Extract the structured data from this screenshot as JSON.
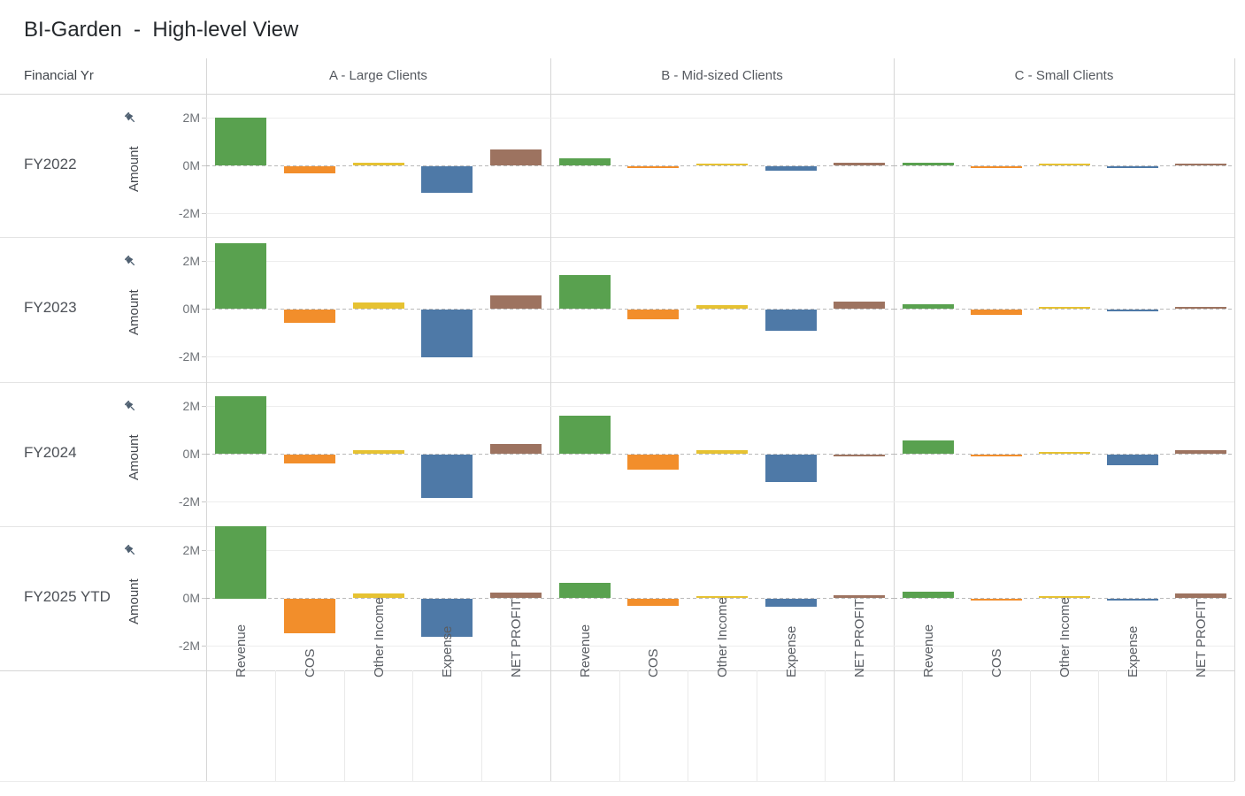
{
  "title": "BI-Garden  -  High-level View",
  "header": {
    "row_dimension_label": "Financial Yr",
    "columns": [
      "A - Large Clients",
      "B - Mid-sized Clients",
      "C - Small Clients"
    ]
  },
  "axis": {
    "title": "Amount",
    "ticks": [
      "2M",
      "0M",
      "-2M"
    ],
    "pin_icon": "pin-icon",
    "pin_color": "#4e5f70"
  },
  "measures": [
    "Revenue",
    "COS",
    "Other Income",
    "Expense",
    "NET PROFIT"
  ],
  "colors": {
    "Revenue": "#59A14F",
    "COS": "#F28E2B",
    "Other Income": "#E6C232",
    "Expense": "#4E79A7",
    "NET PROFIT": "#9D7360"
  },
  "chart_data": {
    "type": "bar",
    "title": "BI-Garden - High-level View",
    "unit": "millions",
    "ylabel": "Amount",
    "ylim": [
      -3,
      3
    ],
    "grid": true,
    "categories": [
      "Revenue",
      "COS",
      "Other Income",
      "Expense",
      "NET PROFIT"
    ],
    "column_groups": [
      "A - Large Clients",
      "B - Mid-sized Clients",
      "C - Small Clients"
    ],
    "rows": [
      {
        "year": "FY2022",
        "sections": [
          [
            2.0,
            -0.3,
            0.12,
            -1.1,
            0.65
          ],
          [
            0.3,
            -0.06,
            0.07,
            -0.2,
            0.1
          ],
          [
            0.1,
            -0.05,
            0.08,
            -0.07,
            0.06
          ]
        ]
      },
      {
        "year": "FY2023",
        "sections": [
          [
            2.75,
            -0.55,
            0.27,
            -2.0,
            0.55
          ],
          [
            1.4,
            -0.4,
            0.15,
            -0.9,
            0.28
          ],
          [
            0.2,
            -0.22,
            0.07,
            -0.05,
            0.02
          ]
        ]
      },
      {
        "year": "FY2024",
        "sections": [
          [
            2.4,
            -0.38,
            0.16,
            -1.8,
            0.42
          ],
          [
            1.6,
            -0.63,
            0.14,
            -1.15,
            -0.08
          ],
          [
            0.57,
            -0.03,
            0.05,
            -0.45,
            0.15
          ]
        ]
      },
      {
        "year": "FY2025 YTD",
        "sections": [
          [
            3.05,
            -1.43,
            0.2,
            -1.6,
            0.22
          ],
          [
            0.64,
            -0.28,
            0.06,
            -0.33,
            0.12
          ],
          [
            0.25,
            -0.04,
            0.04,
            -0.07,
            0.18
          ]
        ]
      }
    ]
  }
}
